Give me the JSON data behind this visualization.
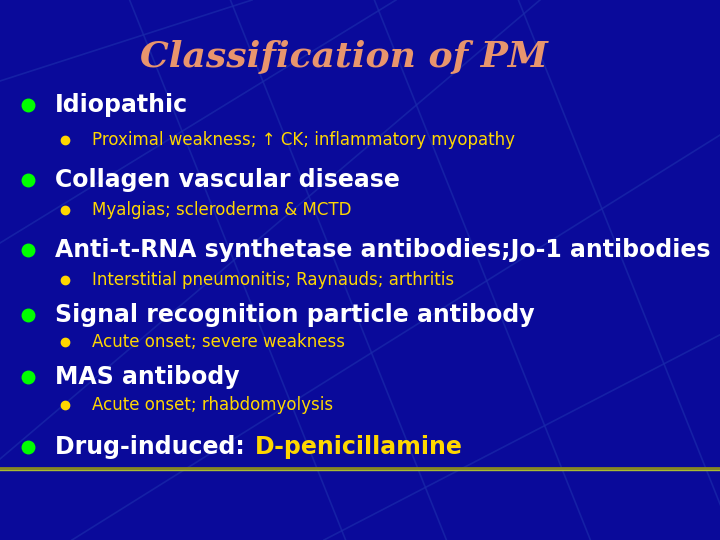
{
  "title": "Classification of PM",
  "title_color": "#E8956D",
  "title_fontsize": 26,
  "bg_color": "#0A0A9A",
  "main_bullet_color": "#00FF00",
  "sub_bullet_color": "#FFD700",
  "main_text_color": "#FFFFFF",
  "sub_text_color": "#FFD700",
  "items": [
    {
      "level": 0,
      "text": "Idiopathic",
      "color": "#FFFFFF"
    },
    {
      "level": 1,
      "text": "Proximal weakness; ↑ CK; inflammatory myopathy",
      "color": "#FFD700"
    },
    {
      "level": 0,
      "text": "Collagen vascular disease",
      "color": "#FFFFFF"
    },
    {
      "level": 1,
      "text": "Myalgias; scleroderma & MCTD",
      "color": "#FFD700"
    },
    {
      "level": 0,
      "text": "Anti-t-RNA synthetase antibodies;Jo-1 antibodies",
      "color": "#FFFFFF"
    },
    {
      "level": 1,
      "text": "Interstitial pneumonitis; Raynauds; arthritis",
      "color": "#FFD700"
    },
    {
      "level": 0,
      "text": "Signal recognition particle antibody",
      "color": "#FFFFFF"
    },
    {
      "level": 1,
      "text": "Acute onset; severe weakness",
      "color": "#FFD700"
    },
    {
      "level": 0,
      "text": "MAS antibody",
      "color": "#FFFFFF"
    },
    {
      "level": 1,
      "text": "Acute onset; rhabdomyolysis",
      "color": "#FFD700"
    },
    {
      "level": 0,
      "text": "Drug-induced: ",
      "color": "#FFFFFF",
      "extra_text": "D-penicillamine",
      "extra_color": "#FFD700"
    }
  ],
  "main_fontsize": 17,
  "sub_fontsize": 12,
  "diag_lines": [
    [
      0.18,
      1.0,
      0.48,
      0.0
    ],
    [
      0.32,
      1.0,
      0.62,
      0.0
    ],
    [
      0.52,
      1.0,
      0.82,
      0.0
    ],
    [
      0.72,
      1.0,
      1.02,
      0.0
    ],
    [
      0.0,
      0.85,
      0.35,
      1.0
    ],
    [
      0.0,
      0.55,
      0.55,
      1.0
    ],
    [
      0.0,
      0.15,
      0.75,
      1.0
    ],
    [
      0.1,
      0.0,
      1.0,
      0.75
    ],
    [
      0.45,
      0.0,
      1.0,
      0.38
    ]
  ],
  "line_color": "#1A2AAA",
  "bottom_line_color1": "#888820",
  "bottom_line_color2": "#AABB33"
}
